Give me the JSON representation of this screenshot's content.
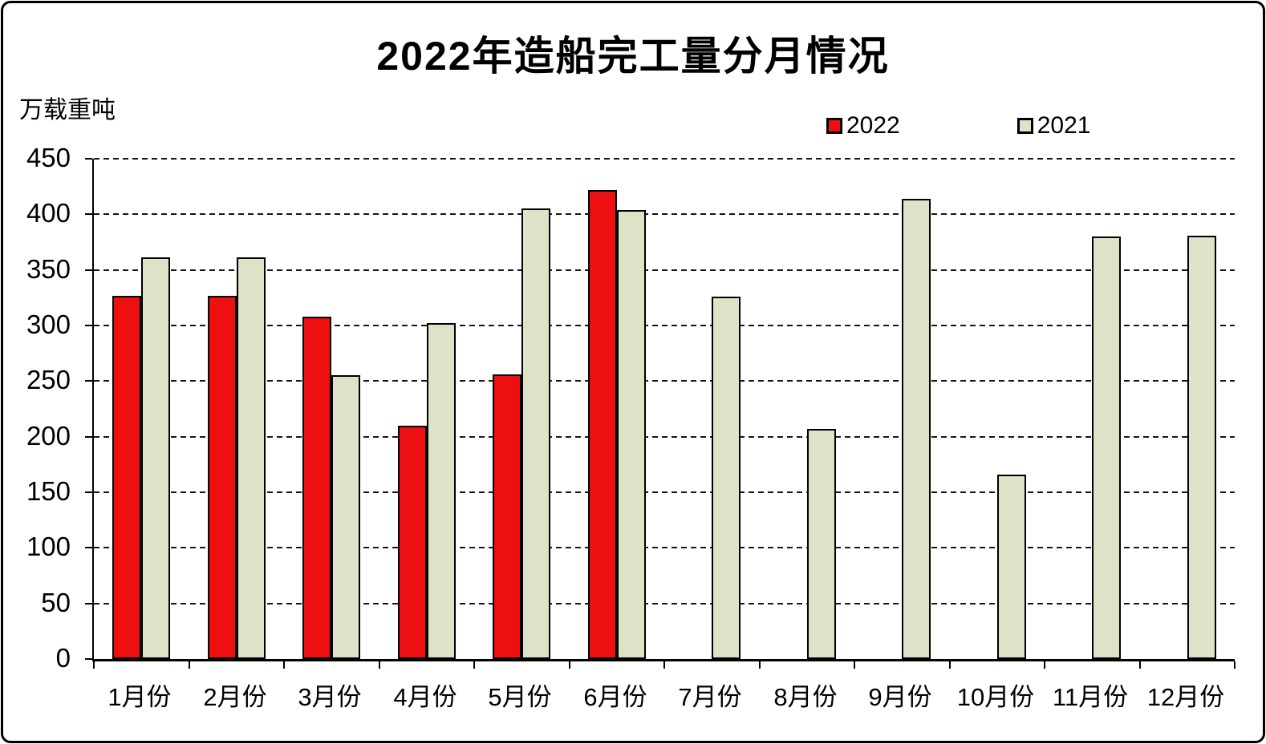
{
  "title": "2022年造船完工量分月情况",
  "unit_label": "万载重吨",
  "legend": [
    {
      "label": "2022",
      "color": "#EE1010"
    },
    {
      "label": "2021",
      "color": "#DDE3C6"
    }
  ],
  "colors": {
    "series_2022": "#EE1010",
    "series_2021": "#DDE3C6",
    "axis": "#000000",
    "gridline": "#161616",
    "background": "#FFFFFF"
  },
  "chart_data": {
    "type": "bar",
    "title": "2022年造船完工量分月情况",
    "ylabel": "万载重吨",
    "categories": [
      "1月份",
      "2月份",
      "3月份",
      "4月份",
      "5月份",
      "6月份",
      "7月份",
      "8月份",
      "9月份",
      "10月份",
      "11月份",
      "12月份"
    ],
    "series": [
      {
        "name": "2022",
        "color": "#EE1010",
        "values": [
          327,
          327,
          308,
          210,
          256,
          422,
          null,
          null,
          null,
          null,
          null,
          null
        ]
      },
      {
        "name": "2021",
        "color": "#DDE3C6",
        "values": [
          361,
          361,
          255,
          302,
          405,
          404,
          326,
          207,
          414,
          166,
          380,
          381
        ]
      }
    ],
    "ylim": [
      0,
      450
    ],
    "ytick_interval": 50,
    "grid": "horizontal-dashed",
    "legend_position": "top-right"
  }
}
